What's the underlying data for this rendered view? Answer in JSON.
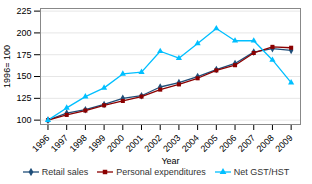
{
  "chart_data": {
    "type": "line",
    "xlabel": "Year",
    "ylabel": "1996= 100",
    "x": [
      1996,
      1997,
      1998,
      1999,
      2000,
      2001,
      2002,
      2003,
      2004,
      2005,
      2006,
      2007,
      2008,
      2009
    ],
    "series": [
      {
        "name": "Retail sales",
        "color": "#1F4E79",
        "marker": "diamond",
        "values": [
          100,
          108,
          112,
          118,
          125,
          128,
          138,
          143,
          150,
          158,
          165,
          178,
          182,
          180
        ]
      },
      {
        "name": "Personal expenditures",
        "color": "#8B0000",
        "marker": "square",
        "values": [
          100,
          106,
          111,
          117,
          122,
          127,
          135,
          141,
          148,
          157,
          163,
          177,
          184,
          183
        ]
      },
      {
        "name": "Net GST/HST",
        "color": "#00BFFF",
        "marker": "triangle",
        "values": [
          100,
          114,
          127,
          137,
          153,
          155,
          179,
          171,
          188,
          205,
          191,
          191,
          169,
          143
        ]
      }
    ],
    "xlim": [
      1995.6,
      2009.5
    ],
    "xticks": [
      1996,
      1997,
      1998,
      1999,
      2000,
      2001,
      2002,
      2003,
      2004,
      2005,
      2006,
      2007,
      2008,
      2009
    ],
    "ylim": [
      95,
      228
    ],
    "yticks": [
      100,
      125,
      150,
      175,
      200,
      225
    ],
    "grid": true,
    "legend": "bottom"
  }
}
